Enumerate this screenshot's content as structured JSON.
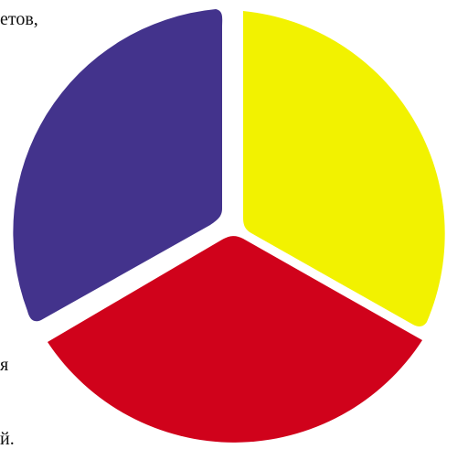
{
  "text_fragments": {
    "top": "етов,",
    "middle": "я",
    "bottom": "й."
  },
  "segments": [
    {
      "name": "yellow-segment",
      "color": "#F2F200"
    },
    {
      "name": "red-segment",
      "color": "#D0021B"
    },
    {
      "name": "blue-segment",
      "color": "#43338C"
    }
  ]
}
